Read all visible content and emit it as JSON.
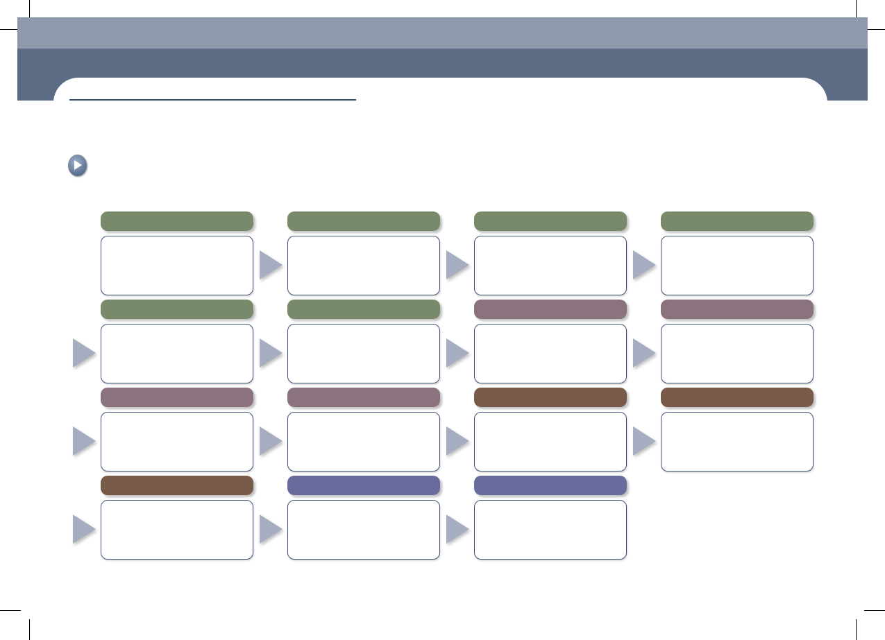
{
  "colors": {
    "header_band_light": "#8e9aac",
    "header_band_dark": "#5c6c85",
    "title_rule": "#3b4f72",
    "box_border": "#3f5275",
    "arrow": "#a6adc0",
    "stage_green": "#788a6a",
    "stage_mauve": "#8a737e",
    "stage_brown": "#775a47",
    "stage_purple": "#686b9b"
  },
  "icons": {
    "bullet": "play-circle-icon",
    "connector": "triangle-arrow-right-icon"
  },
  "flow": {
    "rows": [
      [
        "stage_green",
        "stage_green",
        "stage_green",
        "stage_green"
      ],
      [
        "stage_green",
        "stage_green",
        "stage_mauve",
        "stage_mauve"
      ],
      [
        "stage_mauve",
        "stage_mauve",
        "stage_brown",
        "stage_brown"
      ],
      [
        "stage_brown",
        "stage_purple",
        "stage_purple"
      ]
    ]
  }
}
